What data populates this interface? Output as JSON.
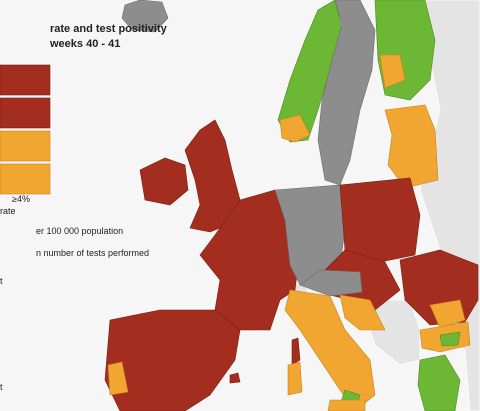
{
  "legend": {
    "title": [
      "rate and test positivity",
      "weeks 40 - 41"
    ],
    "threshold": "≥4%",
    "axis_label": "rate",
    "notes": [
      "er 100 000 population",
      "n number of tests performed"
    ],
    "fragments": [
      "t",
      "t"
    ]
  }
}
